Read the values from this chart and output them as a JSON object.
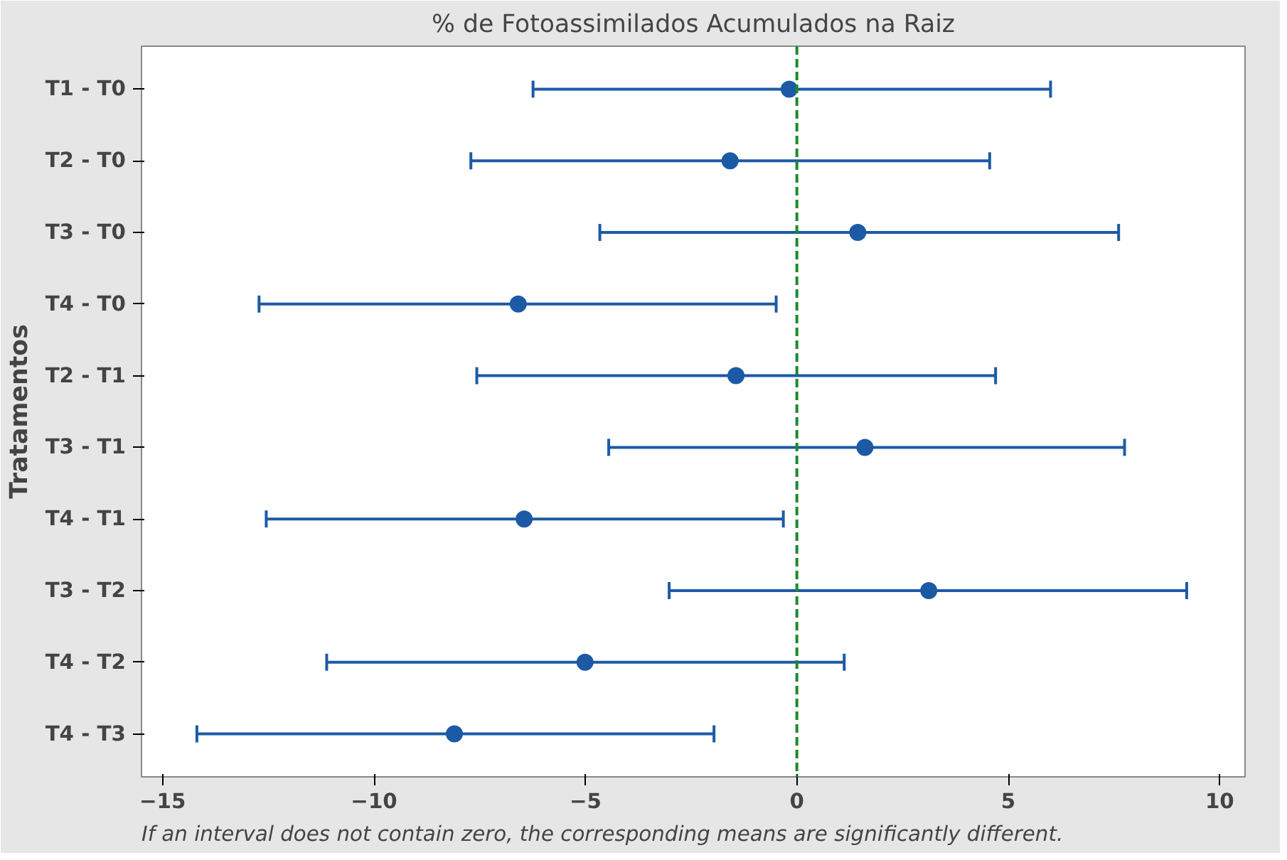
{
  "chart_data": {
    "type": "scatter",
    "orientation": "horizontal",
    "title": "% de Fotoassimilados Acumulados na Raiz",
    "ylabel": "Tratamentos",
    "categories": [
      "T1 - T0",
      "T2 - T0",
      "T3 - T0",
      "T4 - T0",
      "T2 - T1",
      "T3 - T1",
      "T4 - T1",
      "T3 - T2",
      "T4 - T2",
      "T4 - T3"
    ],
    "series": [
      {
        "color": "#1c5aa6",
        "values": [
          -0.18,
          -1.58,
          1.44,
          -6.59,
          -1.44,
          1.61,
          -6.45,
          3.12,
          -5.01,
          -8.1
        ],
        "errors": [
          [
            -6.24,
            6.0
          ],
          [
            -7.71,
            4.56
          ],
          [
            -4.66,
            7.61
          ],
          [
            -12.72,
            -0.49
          ],
          [
            -7.57,
            4.7
          ],
          [
            -4.45,
            7.75
          ],
          [
            -12.55,
            -0.32
          ],
          [
            -3.02,
            9.22
          ],
          [
            -11.12,
            1.12
          ],
          [
            -14.19,
            -1.96
          ]
        ]
      }
    ],
    "xlim": [
      -15.5,
      10.6
    ],
    "xticks": [
      -15,
      -10,
      -5,
      0,
      5,
      10
    ],
    "ref_lines": [
      {
        "axis": "x",
        "value": 0,
        "color": "#1a8a2a",
        "line_style": "dashed"
      }
    ],
    "marker": "circle",
    "grid": false,
    "annotations": [
      "If an interval does not contain zero, the corresponding means are significantly different."
    ]
  }
}
